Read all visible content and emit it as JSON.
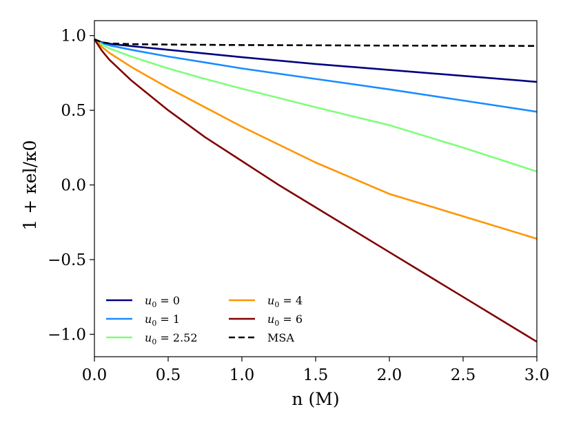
{
  "chart_data": {
    "type": "line",
    "title": "",
    "xlabel": "n (M)",
    "ylabel": "1 + κel/κ0",
    "xlim": [
      0.0,
      3.0
    ],
    "ylim": [
      -1.15,
      1.1
    ],
    "xticks": [
      0.0,
      0.5,
      1.0,
      1.5,
      2.0,
      2.5,
      3.0
    ],
    "xtick_labels": [
      "0.0",
      "0.5",
      "1.0",
      "1.5",
      "2.0",
      "2.5",
      "3.0"
    ],
    "yticks": [
      1.0,
      0.5,
      0.0,
      -0.5,
      -1.0
    ],
    "ytick_labels": [
      "1.0",
      "0.5",
      "0.0",
      "−0.5",
      "−1.0"
    ],
    "grid": false,
    "legend_position": "lower-left",
    "series": [
      {
        "name": "u0 = 0",
        "label_var": "u",
        "label_sub": "0",
        "label_value": "= 0",
        "color": "#00007f",
        "dashed": false,
        "x": [
          0.0,
          0.05,
          0.1,
          0.25,
          0.5,
          0.75,
          1.0,
          1.5,
          2.0,
          2.5,
          3.0
        ],
        "y": [
          0.975,
          0.955,
          0.945,
          0.93,
          0.905,
          0.88,
          0.855,
          0.81,
          0.77,
          0.73,
          0.69
        ]
      },
      {
        "name": "u0 = 1",
        "label_var": "u",
        "label_sub": "0",
        "label_value": "= 1",
        "color": "#1a8cff",
        "dashed": false,
        "x": [
          0.0,
          0.05,
          0.1,
          0.25,
          0.5,
          0.75,
          1.0,
          1.5,
          2.0,
          2.5,
          3.0
        ],
        "y": [
          0.975,
          0.95,
          0.935,
          0.905,
          0.86,
          0.82,
          0.78,
          0.71,
          0.64,
          0.565,
          0.49
        ]
      },
      {
        "name": "u0 = 2.52",
        "label_var": "u",
        "label_sub": "0",
        "label_value": "= 2.52",
        "color": "#7dff7a",
        "dashed": false,
        "x": [
          0.0,
          0.05,
          0.1,
          0.25,
          0.5,
          0.75,
          1.0,
          1.5,
          2.0,
          2.5,
          3.0
        ],
        "y": [
          0.975,
          0.94,
          0.915,
          0.86,
          0.78,
          0.71,
          0.645,
          0.52,
          0.4,
          0.25,
          0.09
        ]
      },
      {
        "name": "u0 = 4",
        "label_var": "u",
        "label_sub": "0",
        "label_value": "= 4",
        "color": "#ff9400",
        "dashed": false,
        "x": [
          0.0,
          0.05,
          0.1,
          0.25,
          0.5,
          0.75,
          1.0,
          1.5,
          2.0,
          2.5,
          3.0
        ],
        "y": [
          0.975,
          0.925,
          0.885,
          0.79,
          0.65,
          0.52,
          0.39,
          0.15,
          -0.06,
          -0.21,
          -0.36
        ]
      },
      {
        "name": "u0 = 6",
        "label_var": "u",
        "label_sub": "0",
        "label_value": "= 6",
        "color": "#7f0000",
        "dashed": false,
        "x": [
          0.0,
          0.05,
          0.1,
          0.25,
          0.5,
          0.75,
          1.0,
          1.25,
          1.5,
          2.0,
          2.5,
          3.0
        ],
        "y": [
          0.975,
          0.9,
          0.84,
          0.7,
          0.5,
          0.32,
          0.16,
          0.0,
          -0.15,
          -0.45,
          -0.75,
          -1.05
        ]
      },
      {
        "name": "MSA",
        "label_var": "",
        "label_sub": "",
        "label_value": "MSA",
        "color": "#000000",
        "dashed": true,
        "x": [
          0.0,
          0.05,
          0.1,
          0.25,
          0.5,
          1.0,
          1.5,
          2.0,
          2.5,
          3.0
        ],
        "y": [
          0.975,
          0.955,
          0.948,
          0.943,
          0.94,
          0.937,
          0.935,
          0.933,
          0.932,
          0.931
        ]
      }
    ]
  }
}
